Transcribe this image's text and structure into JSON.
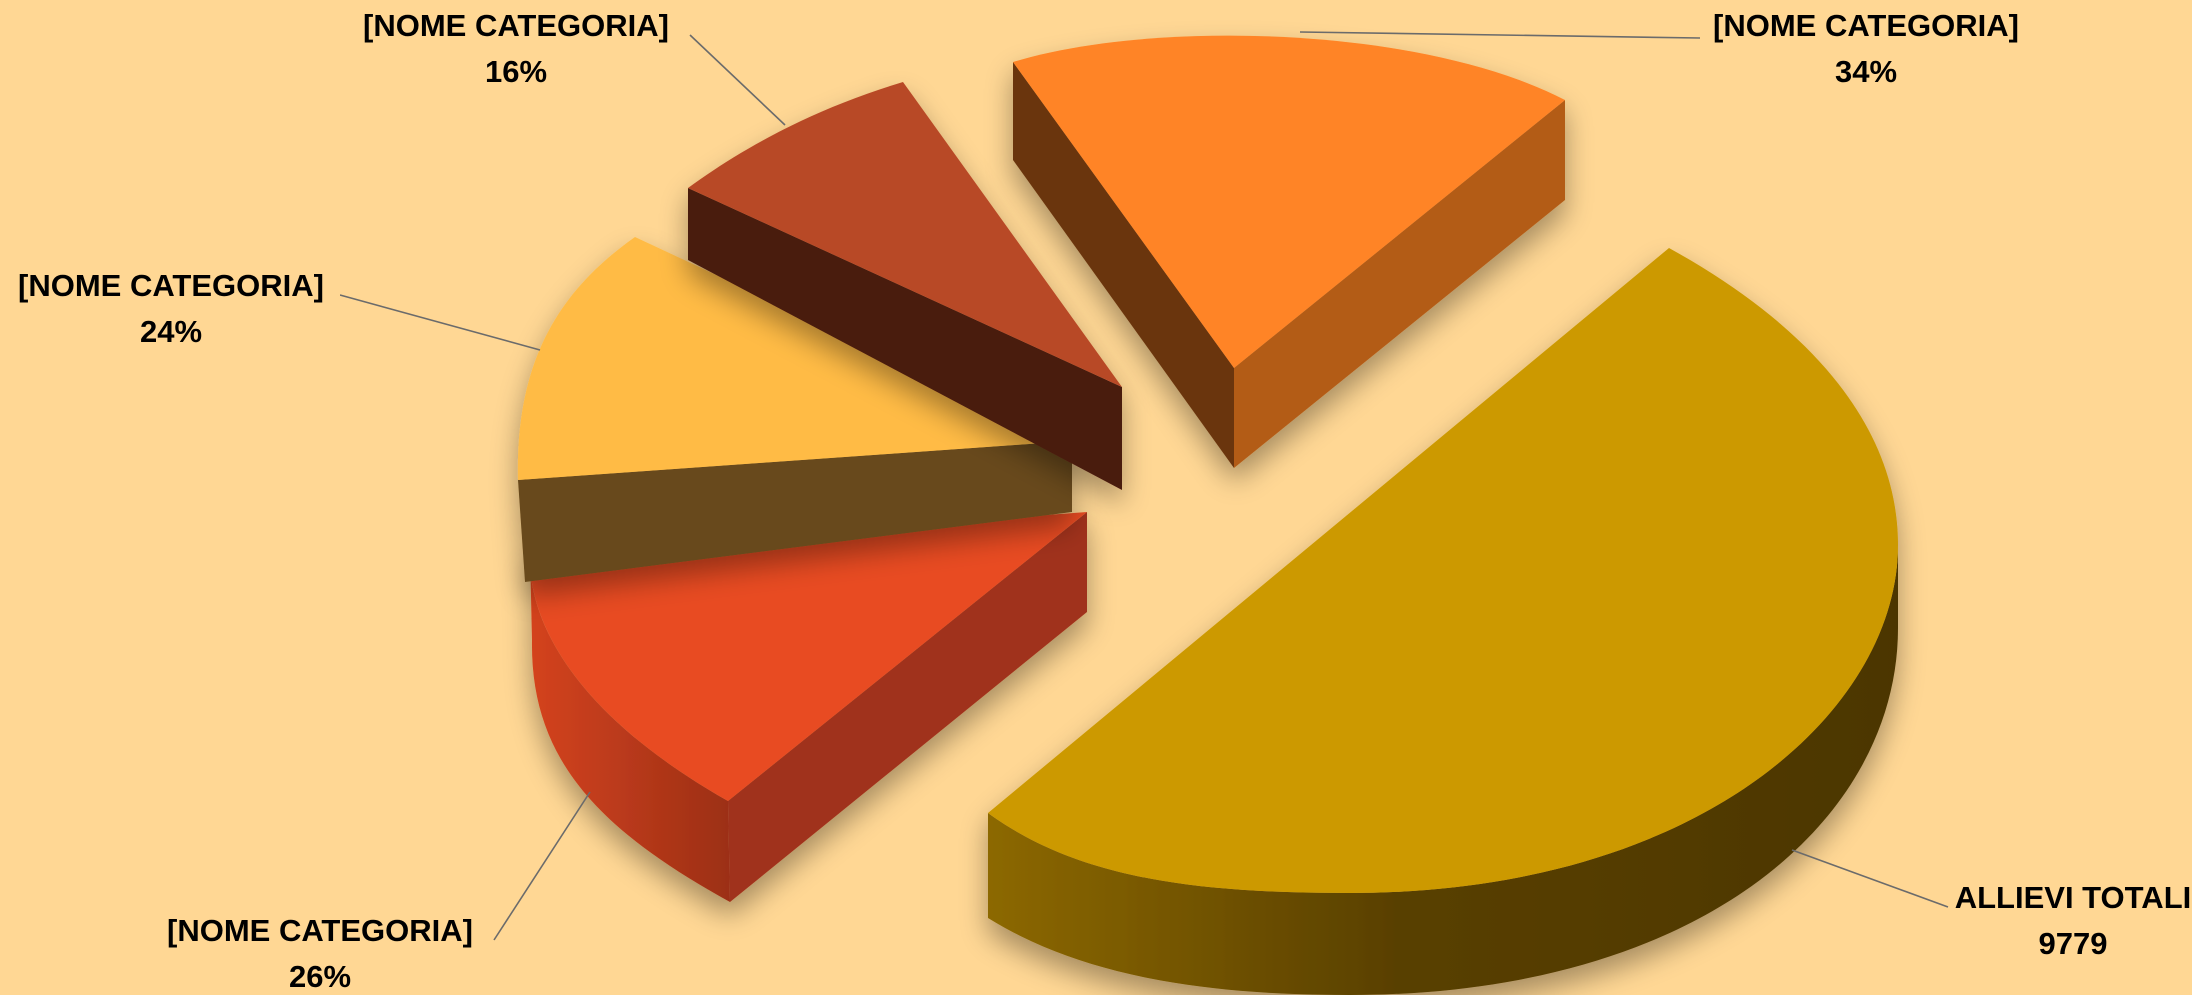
{
  "chart_data": {
    "type": "pie",
    "style": "3d-exploded",
    "title": "",
    "slices": [
      {
        "label": "ALLIEVI TOTALI",
        "value_text": "9779",
        "share": 0.5,
        "color": "#CC9900",
        "side_color": "#594000"
      },
      {
        "label": "[NOME CATEGORIA]",
        "value_text": "26%",
        "share": 0.13,
        "color": "#E84B22",
        "side_color": "#A0321A"
      },
      {
        "label": "[NOME CATEGORIA]",
        "value_text": "24%",
        "share": 0.12,
        "color": "#FFBB44",
        "side_color": "#684A1C"
      },
      {
        "label": "[NOME CATEGORIA]",
        "value_text": "16%",
        "share": 0.08,
        "color": "#B84A28",
        "side_color": "#4A1A10"
      },
      {
        "label": "[NOME CATEGORIA]",
        "value_text": "34%",
        "share": 0.17,
        "color": "#FF8426",
        "side_color": "#B35B17"
      }
    ],
    "legend": "none",
    "background_color": "#FFD794"
  }
}
